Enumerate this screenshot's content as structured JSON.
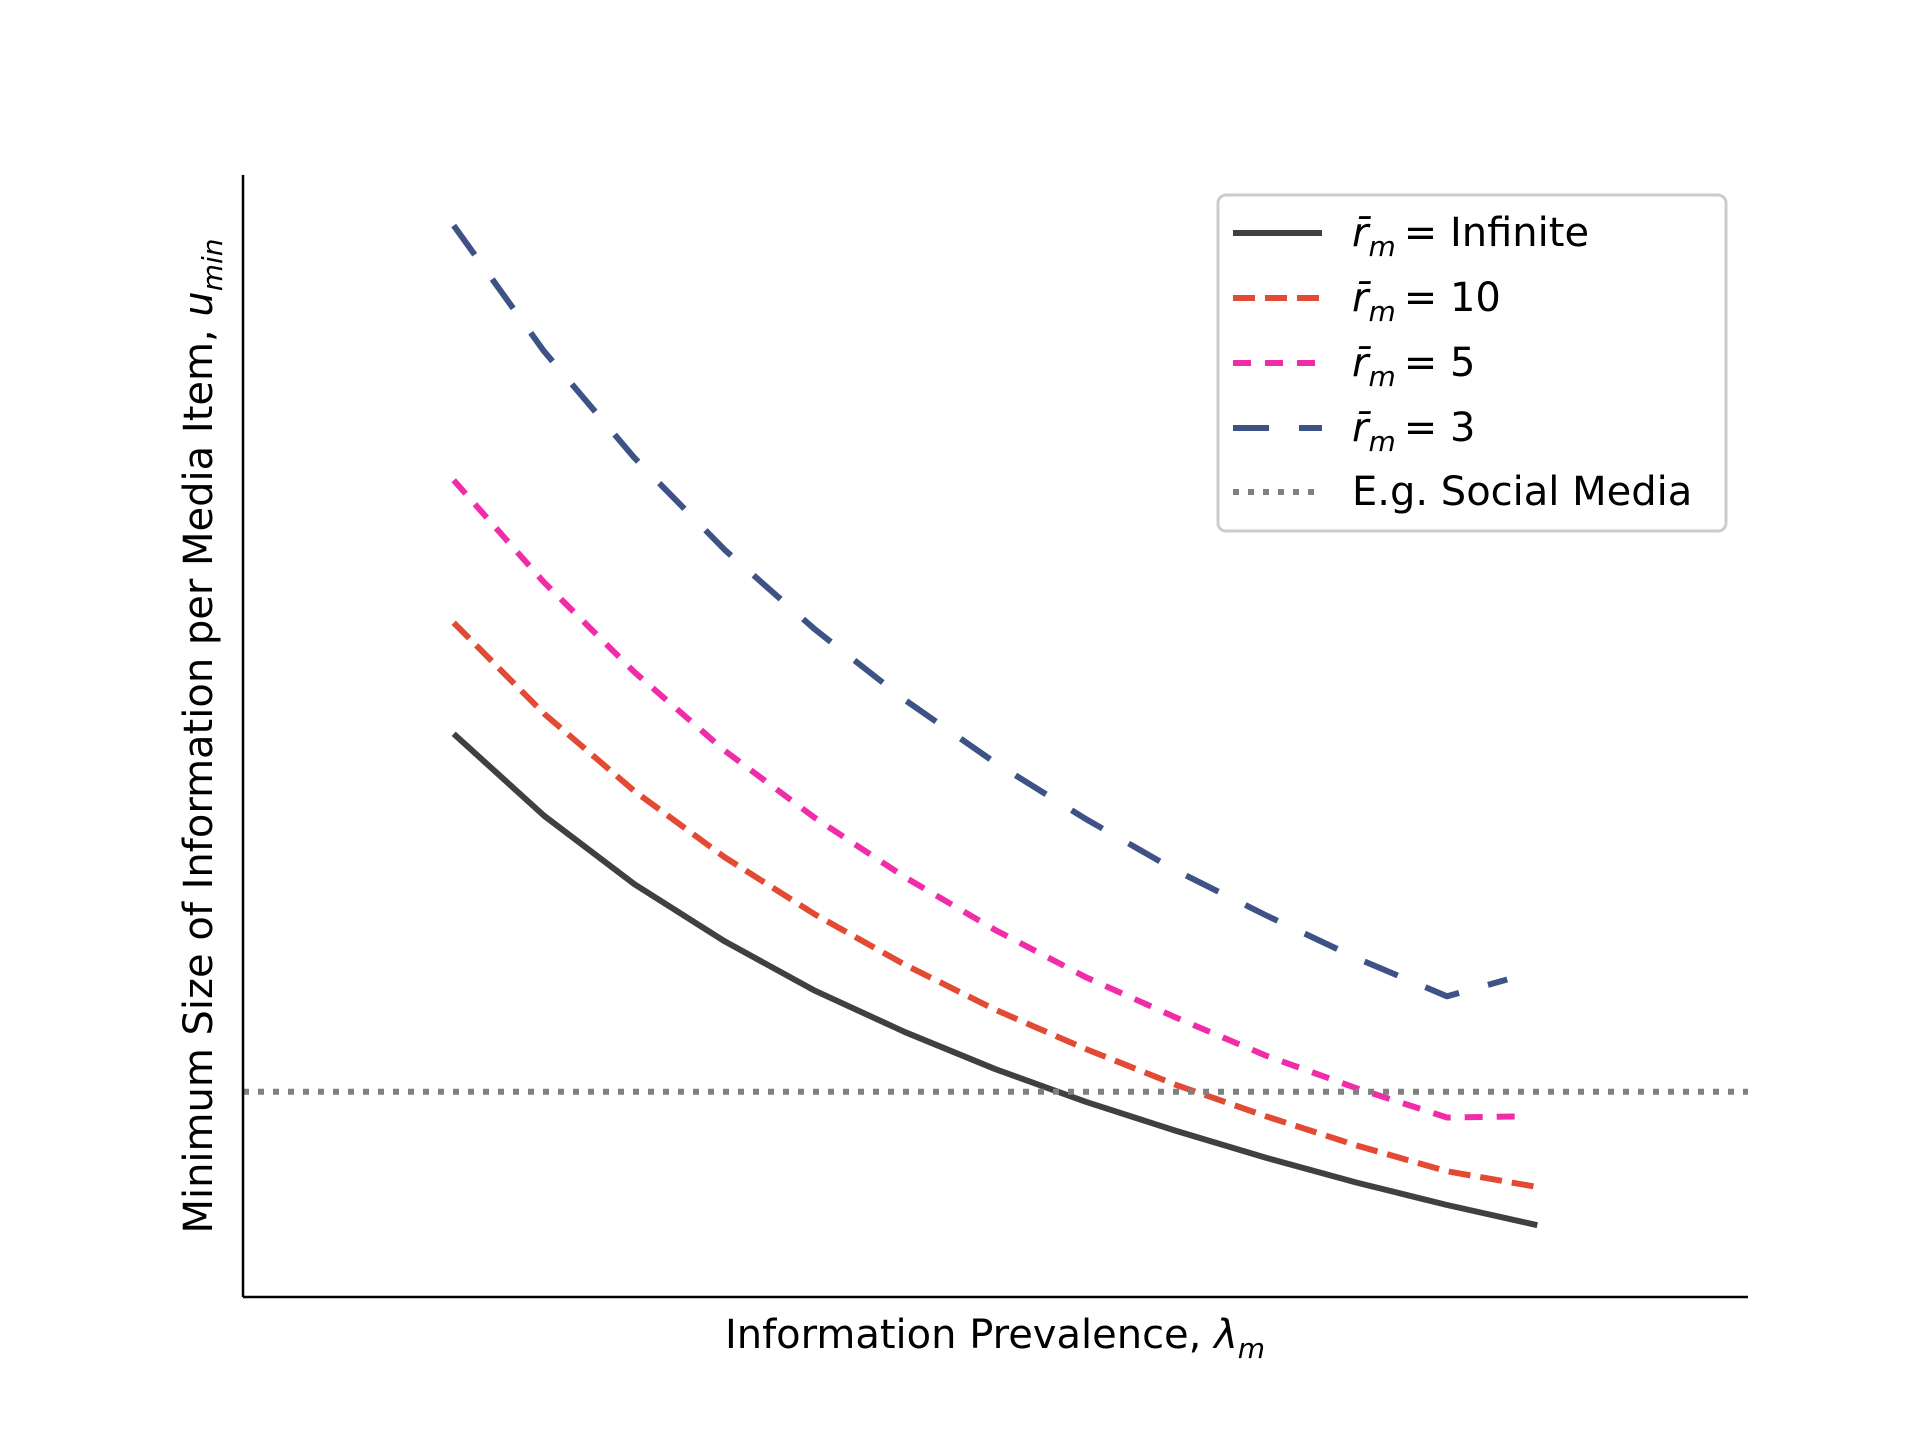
{
  "chart_data": {
    "type": "line",
    "title": "",
    "xlabel": "Information Prevalence, ",
    "xlabel_symbol": "λ",
    "xlabel_subscript": "m",
    "ylabel": "Minimum Size of Information per Media Item, ",
    "ylabel_symbol": "u",
    "ylabel_subscript": "min",
    "xlim": [
      0,
      1
    ],
    "ylim": [
      0,
      1
    ],
    "ticks_shown": false,
    "grid": false,
    "legend_position": "upper right",
    "x": [
      0.14,
      0.2,
      0.26,
      0.32,
      0.38,
      0.44,
      0.5,
      0.56,
      0.62,
      0.68,
      0.74,
      0.8,
      0.86
    ],
    "series": [
      {
        "name": "= Infinite",
        "legend_symbol": "r̄",
        "legend_subscript": "m",
        "style": "solid",
        "color": "#404040",
        "x": [
          0.14,
          0.2,
          0.26,
          0.32,
          0.38,
          0.44,
          0.5,
          0.56,
          0.62,
          0.68,
          0.74,
          0.8,
          0.86
        ],
        "y": [
          0.502,
          0.429,
          0.368,
          0.317,
          0.273,
          0.236,
          0.203,
          0.174,
          0.148,
          0.124,
          0.102,
          0.082,
          0.064
        ]
      },
      {
        "name": "= 10",
        "legend_symbol": "r̄",
        "legend_subscript": "m",
        "style": "dashed",
        "color": "#E24A33",
        "x": [
          0.14,
          0.2,
          0.26,
          0.32,
          0.38,
          0.44,
          0.5,
          0.56,
          0.62,
          0.68,
          0.74,
          0.8,
          0.86
        ],
        "y": [
          0.601,
          0.52,
          0.451,
          0.392,
          0.341,
          0.296,
          0.256,
          0.221,
          0.189,
          0.161,
          0.135,
          0.112,
          0.098
        ]
      },
      {
        "name": "= 5",
        "legend_symbol": "r̄",
        "legend_subscript": "m",
        "style": "dashed",
        "color": "#F02CA8",
        "x": [
          0.14,
          0.2,
          0.26,
          0.32,
          0.38,
          0.44,
          0.5,
          0.56,
          0.62,
          0.68,
          0.74,
          0.8,
          0.85
        ],
        "y": [
          0.728,
          0.637,
          0.557,
          0.487,
          0.427,
          0.374,
          0.327,
          0.285,
          0.249,
          0.215,
          0.186,
          0.16,
          0.161
        ]
      },
      {
        "name": "= 3",
        "legend_symbol": "r̄",
        "legend_subscript": "m",
        "style": "dashed",
        "color": "#3D5285",
        "x": [
          0.14,
          0.2,
          0.26,
          0.32,
          0.38,
          0.44,
          0.5,
          0.56,
          0.62,
          0.68,
          0.74,
          0.8,
          0.84
        ],
        "y": [
          0.955,
          0.843,
          0.748,
          0.666,
          0.595,
          0.532,
          0.476,
          0.426,
          0.38,
          0.34,
          0.302,
          0.268,
          0.283
        ]
      },
      {
        "name": "E.g. Social Media",
        "style": "dotted",
        "color": "#808080",
        "x": [
          0.0,
          1.0
        ],
        "y": [
          0.183,
          0.183
        ]
      }
    ]
  }
}
